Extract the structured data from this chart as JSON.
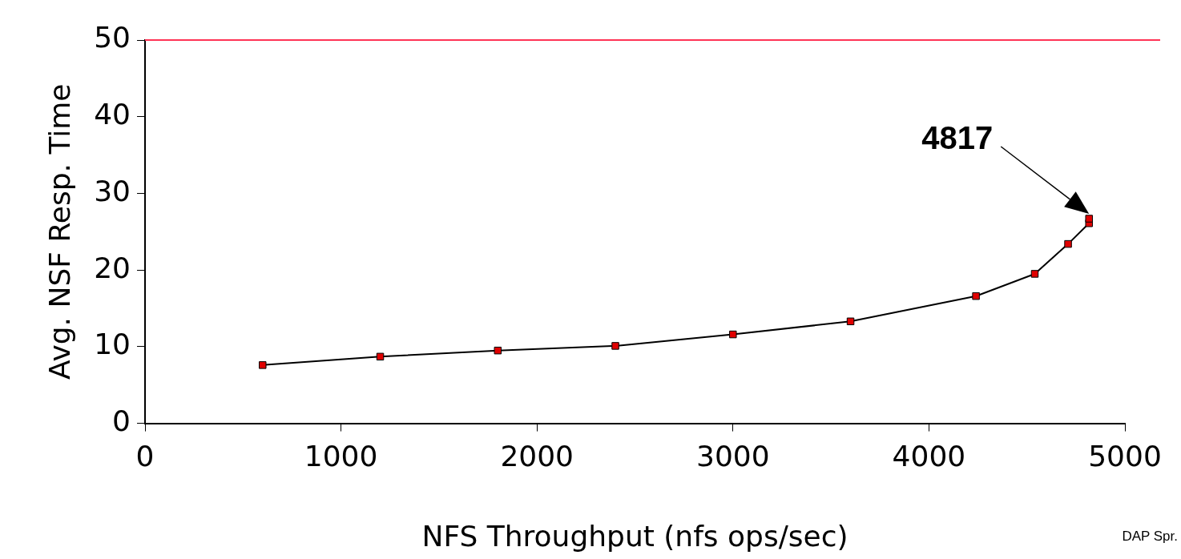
{
  "chart_data": {
    "type": "line",
    "xlabel": "NFS Throughput (nfs ops/sec)",
    "ylabel": "Avg. NSF Resp. Time",
    "xlim": [
      0,
      5000
    ],
    "xticks": [
      0,
      1000,
      2000,
      3000,
      4000,
      5000
    ],
    "ylim": [
      0,
      50
    ],
    "yticks": [
      0,
      10,
      20,
      30,
      40,
      50
    ],
    "grid": false,
    "legend": false,
    "marker": "square",
    "line_style": "solid",
    "series": [
      {
        "color": "#e00000",
        "x": [
          600,
          1200,
          1800,
          2400,
          3000,
          3600,
          4240,
          4540,
          4710,
          4817,
          4817
        ],
        "values": [
          7.6,
          8.7,
          9.5,
          10.1,
          11.6,
          13.3,
          16.6,
          19.5,
          23.4,
          26.1,
          26.7
        ]
      }
    ],
    "ref_lines": [
      {
        "axis": "y",
        "value": 50,
        "color": "#ff3355"
      }
    ],
    "annotations": [
      "4817",
      "DAP Spr."
    ]
  }
}
